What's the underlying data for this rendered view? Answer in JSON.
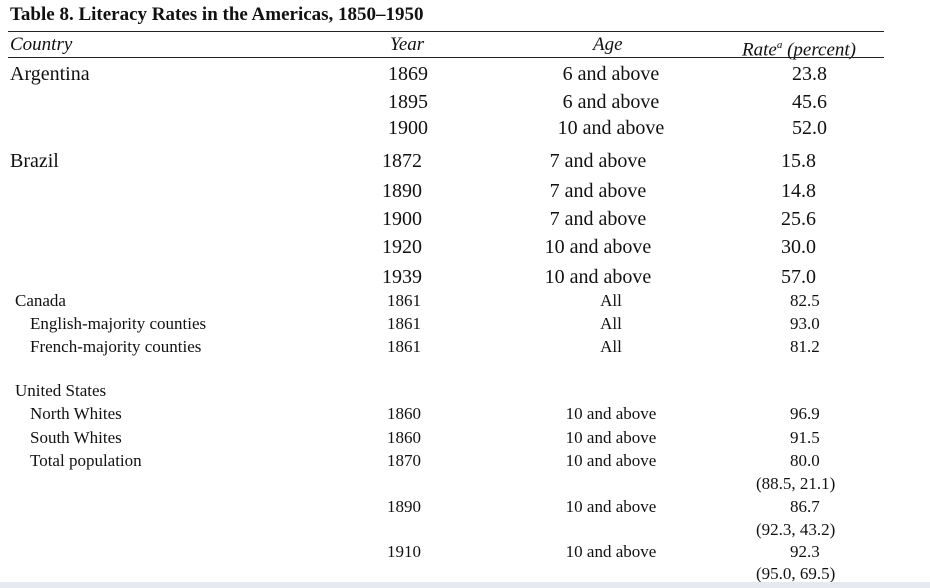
{
  "title": "Table 8. Literacy Rates in the Americas, 1850–1950",
  "headers": {
    "country": "Country",
    "year": "Year",
    "age": "Age",
    "rate_main": "Rate",
    "rate_sup": "a",
    "rate_unit": " (percent)"
  },
  "groups": {
    "argentina": {
      "name": "Argentina",
      "rows": [
        {
          "year": "1869",
          "age": "6 and above",
          "rate": "23.8"
        },
        {
          "year": "1895",
          "age": "6 and above",
          "rate": "45.6"
        },
        {
          "year": "1900",
          "age": "10 and above",
          "rate": "52.0"
        }
      ]
    },
    "brazil": {
      "name": "Brazil",
      "rows": [
        {
          "year": "1872",
          "age": "7 and above",
          "rate": "15.8"
        },
        {
          "year": "1890",
          "age": "7 and above",
          "rate": "14.8"
        },
        {
          "year": "1900",
          "age": "7 and above",
          "rate": "25.6"
        },
        {
          "year": "1920",
          "age": "10 and above",
          "rate": "30.0"
        },
        {
          "year": "1939",
          "age": "10 and above",
          "rate": "57.0"
        }
      ]
    },
    "canada": {
      "name": "Canada",
      "year": "1861",
      "age": "All",
      "rate": "82.5",
      "rows": [
        {
          "label": "English-majority counties",
          "year": "1861",
          "age": "All",
          "rate": "93.0"
        },
        {
          "label": "French-majority counties",
          "year": "1861",
          "age": "All",
          "rate": "81.2"
        }
      ]
    },
    "us": {
      "name": "United States",
      "rows": [
        {
          "label": "North Whites",
          "year": "1860",
          "age": "10 and above",
          "rate": "96.9"
        },
        {
          "label": "South Whites",
          "year": "1860",
          "age": "10 and above",
          "rate": "91.5"
        },
        {
          "label": "Total population",
          "year": "1870",
          "age": "10 and above",
          "rate": "80.0",
          "sub": "(88.5, 21.1)"
        },
        {
          "year": "1890",
          "age": "10 and above",
          "rate": "86.7",
          "sub": "(92.3, 43.2)"
        },
        {
          "year": "1910",
          "age": "10 and above",
          "rate": "92.3",
          "sub": "(95.0, 69.5)"
        }
      ]
    }
  }
}
